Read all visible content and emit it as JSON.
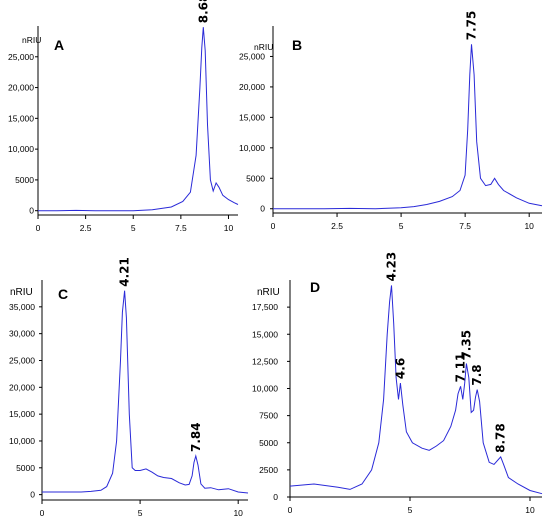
{
  "chart_data": [
    {
      "type": "line",
      "panel": "A",
      "unit": "nRIU",
      "xlim": [
        0,
        10.5
      ],
      "ylim": [
        -700,
        30000
      ],
      "xticks": [
        0,
        2.5,
        5,
        7.5,
        10
      ],
      "yticks": [
        0,
        5000,
        10000,
        15000,
        20000,
        25000
      ],
      "xtick_labels": [
        "0",
        "2.5",
        "5",
        "7.5",
        "10"
      ],
      "ytick_labels": [
        "0",
        "5000",
        "10,000",
        "15,000",
        "20,000",
        "25,000"
      ],
      "peak_labels": [
        {
          "label": "8.68",
          "x": 8.68,
          "y": 29800
        }
      ],
      "series": [
        {
          "x": [
            0,
            1,
            2,
            3,
            4,
            5,
            6,
            7,
            7.6,
            8,
            8.3,
            8.5,
            8.6,
            8.68,
            8.78,
            8.9,
            9.05,
            9.2,
            9.35,
            9.5,
            9.7,
            10,
            10.3,
            10.5
          ],
          "y": [
            0,
            0,
            50,
            0,
            0,
            0,
            150,
            600,
            1500,
            3000,
            9000,
            20000,
            26500,
            29800,
            26000,
            14000,
            5000,
            3200,
            4500,
            3800,
            2500,
            1800,
            1300,
            1000
          ]
        }
      ]
    },
    {
      "type": "line",
      "panel": "B",
      "unit": "nRIU",
      "xlim": [
        0,
        10.5
      ],
      "ylim": [
        -700,
        30000
      ],
      "xticks": [
        0,
        2.5,
        5,
        7.5,
        10
      ],
      "yticks": [
        0,
        5000,
        10000,
        15000,
        20000,
        25000
      ],
      "xtick_labels": [
        "0",
        "2.5",
        "5",
        "7.5",
        "10"
      ],
      "ytick_labels": [
        "0",
        "5000",
        "10,000",
        "15,000",
        "20,000",
        "25,000"
      ],
      "peak_labels": [
        {
          "label": "7.75",
          "x": 7.75,
          "y": 27000
        }
      ],
      "series": [
        {
          "x": [
            0,
            1,
            2,
            3,
            4,
            5,
            5.5,
            6,
            6.5,
            7,
            7.3,
            7.5,
            7.6,
            7.68,
            7.75,
            7.85,
            7.95,
            8.1,
            8.3,
            8.5,
            8.65,
            8.8,
            9,
            9.5,
            10,
            10.5
          ],
          "y": [
            0,
            0,
            0,
            50,
            0,
            150,
            350,
            700,
            1200,
            2000,
            3000,
            5500,
            13000,
            22000,
            27000,
            22000,
            11000,
            5000,
            3800,
            4000,
            5000,
            4000,
            3000,
            1800,
            900,
            500
          ]
        }
      ]
    },
    {
      "type": "line",
      "panel": "C",
      "unit": "nRIU",
      "xlim": [
        0,
        10.5
      ],
      "ylim": [
        -1000,
        40000
      ],
      "xticks": [
        0,
        5,
        10
      ],
      "yticks": [
        0,
        5000,
        10000,
        15000,
        20000,
        25000,
        30000,
        35000
      ],
      "xtick_labels": [
        "0",
        "5",
        "10"
      ],
      "ytick_labels": [
        "0",
        "5000",
        "10,000",
        "15,000",
        "20,000",
        "25,000",
        "30,000",
        "35,000"
      ],
      "peak_labels": [
        {
          "label": "4.21",
          "x": 4.21,
          "y": 38000
        },
        {
          "label": "7.84",
          "x": 7.84,
          "y": 7200
        }
      ],
      "series": [
        {
          "x": [
            0,
            1,
            2,
            2.5,
            3,
            3.3,
            3.6,
            3.8,
            4.0,
            4.1,
            4.21,
            4.3,
            4.45,
            4.6,
            4.75,
            5,
            5.3,
            5.6,
            5.9,
            6.2,
            6.6,
            7,
            7.3,
            7.5,
            7.65,
            7.75,
            7.84,
            7.95,
            8.1,
            8.3,
            8.6,
            9,
            9.5,
            10,
            10.5
          ],
          "y": [
            500,
            500,
            500,
            600,
            800,
            1500,
            4000,
            10000,
            25000,
            34000,
            38000,
            33000,
            15000,
            5000,
            4500,
            4500,
            4800,
            4200,
            3500,
            3200,
            3000,
            2200,
            1800,
            1900,
            3500,
            6000,
            7200,
            5500,
            2000,
            1200,
            1300,
            900,
            1100,
            500,
            300
          ]
        }
      ]
    },
    {
      "type": "line",
      "panel": "D",
      "unit": "nRIU",
      "xlim": [
        0,
        10.5
      ],
      "ylim": [
        0,
        20000
      ],
      "xticks": [
        0,
        5,
        10
      ],
      "yticks": [
        0,
        2500,
        5000,
        7500,
        10000,
        12500,
        15000,
        17500
      ],
      "xtick_labels": [
        "0",
        "5",
        "10"
      ],
      "ytick_labels": [
        "0",
        "2500",
        "5000",
        "7500",
        "10,000",
        "12,500",
        "15,000",
        "17,500"
      ],
      "peak_labels": [
        {
          "label": "4.23",
          "x": 4.23,
          "y": 19500
        },
        {
          "label": "4.6",
          "x": 4.6,
          "y": 10500
        },
        {
          "label": "7.11",
          "x": 7.11,
          "y": 10200
        },
        {
          "label": "7.35",
          "x": 7.35,
          "y": 12300
        },
        {
          "label": "7.8",
          "x": 7.8,
          "y": 9900
        },
        {
          "label": "8.78",
          "x": 8.78,
          "y": 3700
        }
      ],
      "series": [
        {
          "x": [
            0,
            1,
            2,
            2.5,
            3,
            3.4,
            3.7,
            3.9,
            4.05,
            4.15,
            4.23,
            4.32,
            4.42,
            4.52,
            4.6,
            4.7,
            4.85,
            5.1,
            5.5,
            5.8,
            6.1,
            6.4,
            6.7,
            6.9,
            7.0,
            7.11,
            7.2,
            7.28,
            7.35,
            7.45,
            7.55,
            7.65,
            7.73,
            7.8,
            7.9,
            8.05,
            8.3,
            8.5,
            8.7,
            8.78,
            8.9,
            9.1,
            9.5,
            10,
            10.5
          ],
          "y": [
            1000,
            1200,
            900,
            700,
            1200,
            2500,
            5000,
            9000,
            15000,
            18000,
            19500,
            16000,
            11000,
            9000,
            10500,
            8500,
            6000,
            5000,
            4500,
            4300,
            4700,
            5200,
            6500,
            8000,
            9500,
            10200,
            9000,
            10500,
            12300,
            11000,
            7800,
            8000,
            9200,
            9900,
            8800,
            5000,
            3200,
            3000,
            3500,
            3700,
            3000,
            1800,
            1200,
            600,
            300
          ]
        }
      ]
    }
  ]
}
